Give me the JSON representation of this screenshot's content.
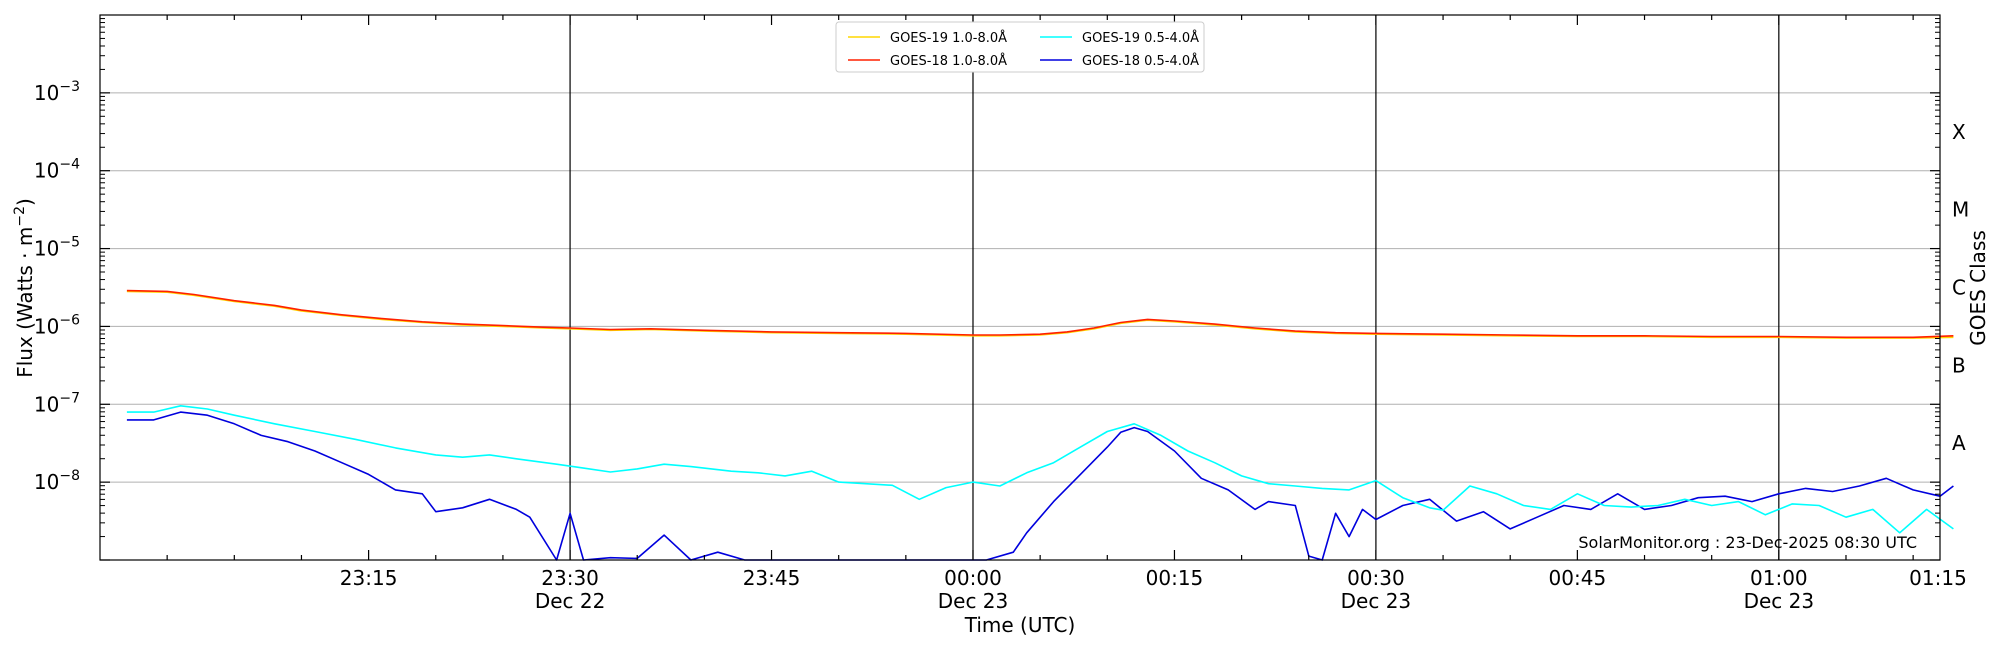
{
  "chart_data": {
    "type": "line",
    "ylabel": "Flux (Watts · m⁻²)",
    "ylabel_main": "Flux (Watts · m",
    "ylabel_sup": "−2",
    "ylabel_close": ")",
    "xlabel": "Time (UTC)",
    "right_label": "GOES Class",
    "yscale": "log",
    "ylim": [
      1e-09,
      0.01
    ],
    "xlim_minutes": [
      -5,
      132
    ],
    "yticks": [
      {
        "exp": -8,
        "base": "10",
        "sup": "−8"
      },
      {
        "exp": -7,
        "base": "10",
        "sup": "−7"
      },
      {
        "exp": -6,
        "base": "10",
        "sup": "−6"
      },
      {
        "exp": -5,
        "base": "10",
        "sup": "−5"
      },
      {
        "exp": -4,
        "base": "10",
        "sup": "−4"
      },
      {
        "exp": -3,
        "base": "10",
        "sup": "−3"
      }
    ],
    "xticks": [
      {
        "t": 15,
        "line1": "23:15",
        "line2": ""
      },
      {
        "t": 30,
        "line1": "23:30",
        "line2": "Dec 22"
      },
      {
        "t": 45,
        "line1": "23:45",
        "line2": ""
      },
      {
        "t": 60,
        "line1": "00:00",
        "line2": "Dec 23"
      },
      {
        "t": 75,
        "line1": "00:15",
        "line2": ""
      },
      {
        "t": 90,
        "line1": "00:30",
        "line2": "Dec 23"
      },
      {
        "t": 105,
        "line1": "00:45",
        "line2": ""
      },
      {
        "t": 120,
        "line1": "01:00",
        "line2": "Dec 23"
      },
      {
        "t": 135,
        "line1": "01:15",
        "line2": ""
      }
    ],
    "goes_classes": [
      {
        "label": "A",
        "exp": -7.5
      },
      {
        "label": "B",
        "exp": -6.5
      },
      {
        "label": "C",
        "exp": -5.5
      },
      {
        "label": "M",
        "exp": -4.5
      },
      {
        "label": "X",
        "exp": -3.5
      }
    ],
    "grid": "horizontal at decades",
    "legend_position": "top-center",
    "credit": "SolarMonitor.org : 23-Dec-2025 08:30 UTC",
    "x_note": "x values are minutes after 23:00 UTC Dec 22",
    "series": [
      {
        "name": "GOES-19 1.0-8.0Å",
        "color": "#ffd700",
        "points": [
          [
            -3,
            -5.55
          ],
          [
            0,
            -5.56
          ],
          [
            2,
            -5.6
          ],
          [
            5,
            -5.68
          ],
          [
            8,
            -5.74
          ],
          [
            10,
            -5.8
          ],
          [
            13,
            -5.86
          ],
          [
            16,
            -5.91
          ],
          [
            19,
            -5.95
          ],
          [
            22,
            -5.98
          ],
          [
            25,
            -6.0
          ],
          [
            28,
            -6.02
          ],
          [
            30,
            -6.03
          ],
          [
            33,
            -6.05
          ],
          [
            36,
            -6.04
          ],
          [
            40,
            -6.06
          ],
          [
            45,
            -6.08
          ],
          [
            50,
            -6.09
          ],
          [
            55,
            -6.1
          ],
          [
            60,
            -6.12
          ],
          [
            62,
            -6.12
          ],
          [
            65,
            -6.11
          ],
          [
            67,
            -6.08
          ],
          [
            69,
            -6.03
          ],
          [
            71,
            -5.96
          ],
          [
            73,
            -5.92
          ],
          [
            75,
            -5.94
          ],
          [
            78,
            -5.98
          ],
          [
            81,
            -6.03
          ],
          [
            84,
            -6.07
          ],
          [
            87,
            -6.09
          ],
          [
            90,
            -6.1
          ],
          [
            95,
            -6.11
          ],
          [
            100,
            -6.12
          ],
          [
            105,
            -6.13
          ],
          [
            110,
            -6.13
          ],
          [
            115,
            -6.14
          ],
          [
            120,
            -6.14
          ],
          [
            125,
            -6.15
          ],
          [
            130,
            -6.15
          ],
          [
            133,
            -6.14
          ]
        ]
      },
      {
        "name": "GOES-18 1.0-8.0Å",
        "color": "#ff2000",
        "points": [
          [
            -3,
            -5.54
          ],
          [
            0,
            -5.55
          ],
          [
            2,
            -5.59
          ],
          [
            5,
            -5.67
          ],
          [
            8,
            -5.73
          ],
          [
            10,
            -5.79
          ],
          [
            13,
            -5.85
          ],
          [
            16,
            -5.9
          ],
          [
            19,
            -5.94
          ],
          [
            22,
            -5.97
          ],
          [
            25,
            -5.99
          ],
          [
            28,
            -6.01
          ],
          [
            30,
            -6.02
          ],
          [
            33,
            -6.04
          ],
          [
            36,
            -6.03
          ],
          [
            40,
            -6.05
          ],
          [
            45,
            -6.07
          ],
          [
            50,
            -6.08
          ],
          [
            55,
            -6.09
          ],
          [
            60,
            -6.11
          ],
          [
            62,
            -6.11
          ],
          [
            65,
            -6.1
          ],
          [
            67,
            -6.07
          ],
          [
            69,
            -6.02
          ],
          [
            71,
            -5.95
          ],
          [
            73,
            -5.91
          ],
          [
            75,
            -5.93
          ],
          [
            78,
            -5.97
          ],
          [
            81,
            -6.02
          ],
          [
            84,
            -6.06
          ],
          [
            87,
            -6.08
          ],
          [
            90,
            -6.09
          ],
          [
            95,
            -6.1
          ],
          [
            100,
            -6.11
          ],
          [
            105,
            -6.12
          ],
          [
            110,
            -6.12
          ],
          [
            115,
            -6.13
          ],
          [
            120,
            -6.13
          ],
          [
            125,
            -6.14
          ],
          [
            130,
            -6.14
          ],
          [
            133,
            -6.12
          ]
        ]
      },
      {
        "name": "GOES-19 0.5-4.0Å",
        "color": "#00ffff",
        "points": [
          [
            -3,
            -7.1
          ],
          [
            -1,
            -7.1
          ],
          [
            1,
            -7.02
          ],
          [
            3,
            -7.06
          ],
          [
            5,
            -7.14
          ],
          [
            8,
            -7.25
          ],
          [
            11,
            -7.35
          ],
          [
            14,
            -7.45
          ],
          [
            17,
            -7.56
          ],
          [
            20,
            -7.65
          ],
          [
            22,
            -7.68
          ],
          [
            24,
            -7.65
          ],
          [
            26,
            -7.7
          ],
          [
            29,
            -7.77
          ],
          [
            31,
            -7.82
          ],
          [
            33,
            -7.87
          ],
          [
            35,
            -7.83
          ],
          [
            37,
            -7.77
          ],
          [
            39,
            -7.8
          ],
          [
            42,
            -7.86
          ],
          [
            44,
            -7.88
          ],
          [
            46,
            -7.92
          ],
          [
            48,
            -7.86
          ],
          [
            50,
            -8.0
          ],
          [
            52,
            -8.02
          ],
          [
            54,
            -8.04
          ],
          [
            56,
            -8.22
          ],
          [
            58,
            -8.07
          ],
          [
            60,
            -8.0
          ],
          [
            62,
            -8.05
          ],
          [
            64,
            -7.88
          ],
          [
            66,
            -7.75
          ],
          [
            68,
            -7.55
          ],
          [
            70,
            -7.35
          ],
          [
            72,
            -7.25
          ],
          [
            74,
            -7.4
          ],
          [
            76,
            -7.6
          ],
          [
            78,
            -7.75
          ],
          [
            80,
            -7.92
          ],
          [
            82,
            -8.02
          ],
          [
            84,
            -8.05
          ],
          [
            86,
            -8.08
          ],
          [
            88,
            -8.1
          ],
          [
            90,
            -7.98
          ],
          [
            92,
            -8.2
          ],
          [
            94,
            -8.33
          ],
          [
            95,
            -8.36
          ],
          [
            97,
            -8.05
          ],
          [
            99,
            -8.15
          ],
          [
            101,
            -8.3
          ],
          [
            103,
            -8.35
          ],
          [
            105,
            -8.15
          ],
          [
            107,
            -8.3
          ],
          [
            109,
            -8.32
          ],
          [
            111,
            -8.3
          ],
          [
            113,
            -8.22
          ],
          [
            115,
            -8.3
          ],
          [
            117,
            -8.25
          ],
          [
            119,
            -8.42
          ],
          [
            121,
            -8.28
          ],
          [
            123,
            -8.3
          ],
          [
            125,
            -8.45
          ],
          [
            127,
            -8.35
          ],
          [
            129,
            -8.65
          ],
          [
            131,
            -8.35
          ],
          [
            133,
            -8.6
          ]
        ]
      },
      {
        "name": "GOES-18 0.5-4.0Å",
        "color": "#0000dd",
        "points": [
          [
            -3,
            -7.2
          ],
          [
            -1,
            -7.2
          ],
          [
            1,
            -7.1
          ],
          [
            3,
            -7.14
          ],
          [
            5,
            -7.25
          ],
          [
            7,
            -7.4
          ],
          [
            9,
            -7.48
          ],
          [
            11,
            -7.6
          ],
          [
            13,
            -7.75
          ],
          [
            15,
            -7.9
          ],
          [
            17,
            -8.1
          ],
          [
            19,
            -8.15
          ],
          [
            20,
            -8.38
          ],
          [
            22,
            -8.33
          ],
          [
            24,
            -8.22
          ],
          [
            26,
            -8.35
          ],
          [
            27,
            -8.45
          ],
          [
            29,
            -9.0
          ],
          [
            30,
            -8.4
          ],
          [
            31,
            -9.0
          ],
          [
            33,
            -8.97
          ],
          [
            35,
            -8.98
          ],
          [
            37,
            -8.68
          ],
          [
            39,
            -9.0
          ],
          [
            41,
            -8.9
          ],
          [
            43,
            -9.0
          ],
          [
            50,
            -9.0
          ],
          [
            58,
            -9.0
          ],
          [
            61,
            -9.0
          ],
          [
            63,
            -8.9
          ],
          [
            64,
            -8.65
          ],
          [
            66,
            -8.25
          ],
          [
            68,
            -7.9
          ],
          [
            70,
            -7.55
          ],
          [
            71,
            -7.36
          ],
          [
            72,
            -7.3
          ],
          [
            73,
            -7.35
          ],
          [
            75,
            -7.6
          ],
          [
            77,
            -7.95
          ],
          [
            79,
            -8.1
          ],
          [
            81,
            -8.35
          ],
          [
            82,
            -8.25
          ],
          [
            84,
            -8.3
          ],
          [
            85,
            -8.95
          ],
          [
            86,
            -9.0
          ],
          [
            87,
            -8.4
          ],
          [
            88,
            -8.7
          ],
          [
            89,
            -8.35
          ],
          [
            90,
            -8.48
          ],
          [
            92,
            -8.3
          ],
          [
            94,
            -8.22
          ],
          [
            96,
            -8.5
          ],
          [
            98,
            -8.38
          ],
          [
            100,
            -8.6
          ],
          [
            102,
            -8.45
          ],
          [
            104,
            -8.3
          ],
          [
            106,
            -8.35
          ],
          [
            108,
            -8.15
          ],
          [
            110,
            -8.35
          ],
          [
            112,
            -8.3
          ],
          [
            114,
            -8.2
          ],
          [
            116,
            -8.18
          ],
          [
            118,
            -8.25
          ],
          [
            120,
            -8.15
          ],
          [
            122,
            -8.08
          ],
          [
            124,
            -8.12
          ],
          [
            126,
            -8.05
          ],
          [
            128,
            -7.95
          ],
          [
            130,
            -8.1
          ],
          [
            132,
            -8.18
          ],
          [
            133,
            -8.05
          ]
        ]
      }
    ]
  }
}
